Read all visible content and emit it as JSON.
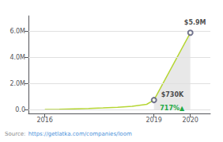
{
  "chart_data": {
    "type": "line",
    "x": [
      2016,
      2016.4,
      2016.8,
      2017.2,
      2017.6,
      2018,
      2018.4,
      2018.8,
      2019,
      2020
    ],
    "values": [
      0,
      20000,
      50000,
      80000,
      120000,
      170000,
      250000,
      400000,
      730000,
      5900000
    ],
    "xlim": [
      2015.55,
      2020.55
    ],
    "xticks": [
      2016,
      2019,
      2020
    ],
    "ylim": [
      -300000,
      7200000
    ],
    "yticks": [
      {
        "value": 0,
        "label": "0.0"
      },
      {
        "value": 2000000,
        "label": "2.0M"
      },
      {
        "value": 4000000,
        "label": "4.0M"
      },
      {
        "value": 6000000,
        "label": "6.0M"
      }
    ],
    "grid": true,
    "shaded_range": [
      2019,
      2020
    ],
    "annotations": [
      {
        "text": "$730K",
        "x": 2019,
        "y": 730000
      },
      {
        "text": "$5.9M",
        "x": 2020,
        "y": 5900000
      },
      {
        "text": "717%▲",
        "color": "#22aa44"
      }
    ],
    "source": {
      "text": "Source:",
      "link": "https://getlatka.com/companies/loom",
      "link_color": "#4a90d9"
    }
  }
}
